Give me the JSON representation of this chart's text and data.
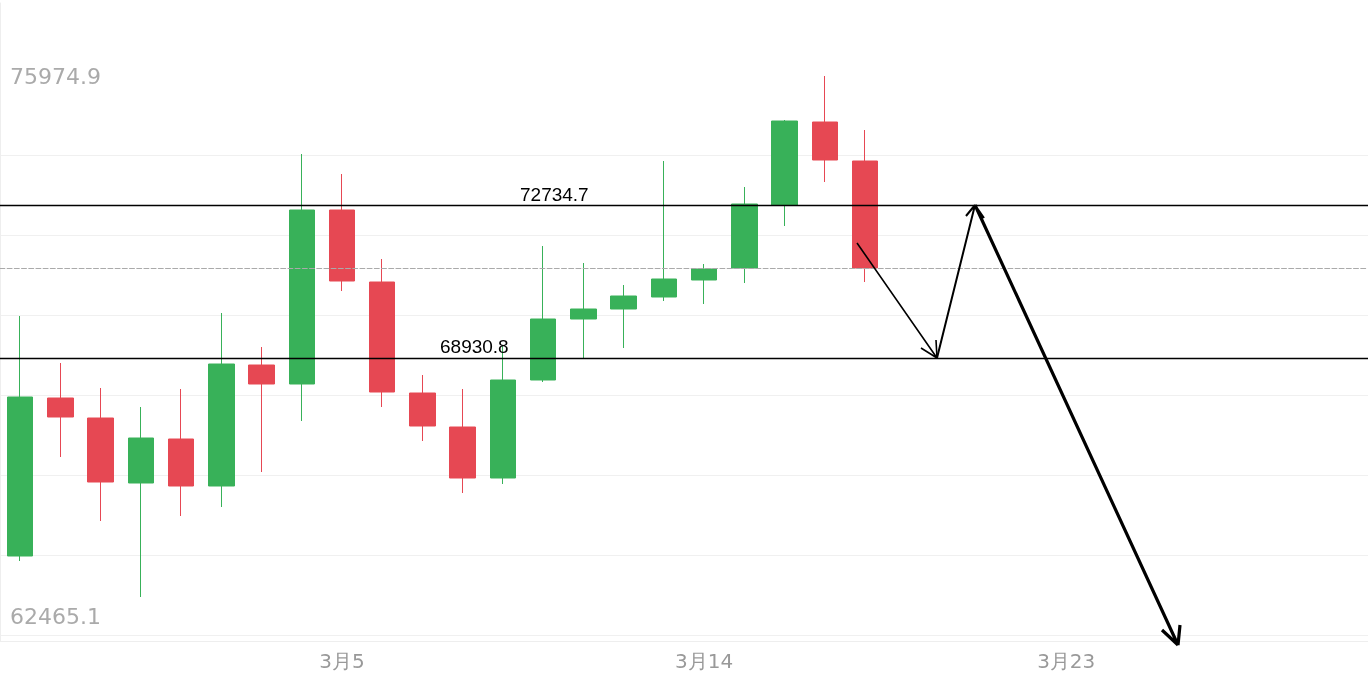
{
  "chart_data": {
    "type": "candlestick",
    "categories": [
      null,
      null,
      null,
      null,
      null,
      null,
      null,
      null,
      "3月5",
      null,
      null,
      null,
      null,
      null,
      null,
      null,
      null,
      "3月14",
      null,
      null,
      null,
      null,
      null,
      null,
      null,
      null,
      "3月23",
      null,
      null,
      null,
      null,
      null,
      null,
      null
    ],
    "ohlc": [
      [
        63975,
        69975,
        63850,
        67950
      ],
      [
        67925,
        68800,
        66450,
        67450
      ],
      [
        67425,
        68175,
        64850,
        65825
      ],
      [
        65800,
        67700,
        62950,
        66925
      ],
      [
        66900,
        68150,
        64975,
        65725
      ],
      [
        65725,
        70050,
        65200,
        68775
      ],
      [
        68750,
        69200,
        66075,
        68275
      ],
      [
        68275,
        74025,
        67350,
        72625
      ],
      [
        72625,
        73525,
        70600,
        70850
      ],
      [
        70825,
        71400,
        67700,
        68075
      ],
      [
        68050,
        68500,
        66850,
        67225
      ],
      [
        67200,
        68150,
        65550,
        65925
      ],
      [
        65925,
        69225,
        65775,
        68375
      ],
      [
        68375,
        71725,
        68325,
        69900
      ],
      [
        69900,
        71300,
        68925,
        70150
      ],
      [
        70150,
        70750,
        69175,
        70475
      ],
      [
        70450,
        73850,
        70350,
        70900
      ],
      [
        70875,
        71275,
        70275,
        71150
      ],
      [
        71175,
        73200,
        70800,
        72775
      ],
      [
        72750,
        74875,
        72225,
        74850
      ],
      [
        74825,
        75974.9,
        73325,
        73875
      ],
      [
        73850,
        74625,
        70825,
        71175
      ],
      null,
      null,
      null,
      null,
      null,
      null,
      null,
      null,
      null,
      null,
      null,
      null
    ],
    "colors": [
      "#38b159",
      "#e64853",
      "#e64853",
      "#38b159",
      "#e64853",
      "#38b159",
      "#e64853",
      "#38b159",
      "#e64853",
      "#e64853",
      "#e64853",
      "#e64853",
      "#38b159",
      "#38b159",
      "#38b159",
      "#38b159",
      "#38b159",
      "#38b159",
      "#38b159",
      "#38b159",
      "#e64853",
      "#e64853",
      null,
      null,
      null,
      null,
      null,
      null,
      null,
      null,
      null,
      null,
      null,
      null
    ],
    "yticks": [
      {
        "value": 62000,
        "label": null
      },
      {
        "value": 62465.1,
        "label": "62465.1"
      },
      {
        "value": 64000,
        "label": null
      },
      {
        "value": 66000,
        "label": null
      },
      {
        "value": 68000,
        "label": null
      },
      {
        "value": 70000,
        "label": null
      },
      {
        "value": 72000,
        "label": null
      },
      {
        "value": 74000,
        "label": null
      },
      {
        "value": 75974.9,
        "label": "75974.9"
      }
    ],
    "ylim": [
      61850,
      77800
    ],
    "grid": "y",
    "ref_lines": [
      {
        "axis": "y",
        "value": 72734.7,
        "label": "72734.7",
        "color": "#000000",
        "line_style": "solid"
      },
      {
        "axis": "y",
        "value": 68930.8,
        "label": "68930.8",
        "color": "#000000",
        "line_style": "solid"
      },
      {
        "axis": "y",
        "value": 71175,
        "color": "#aaaaaa",
        "line_style": "dashed"
      }
    ]
  }
}
